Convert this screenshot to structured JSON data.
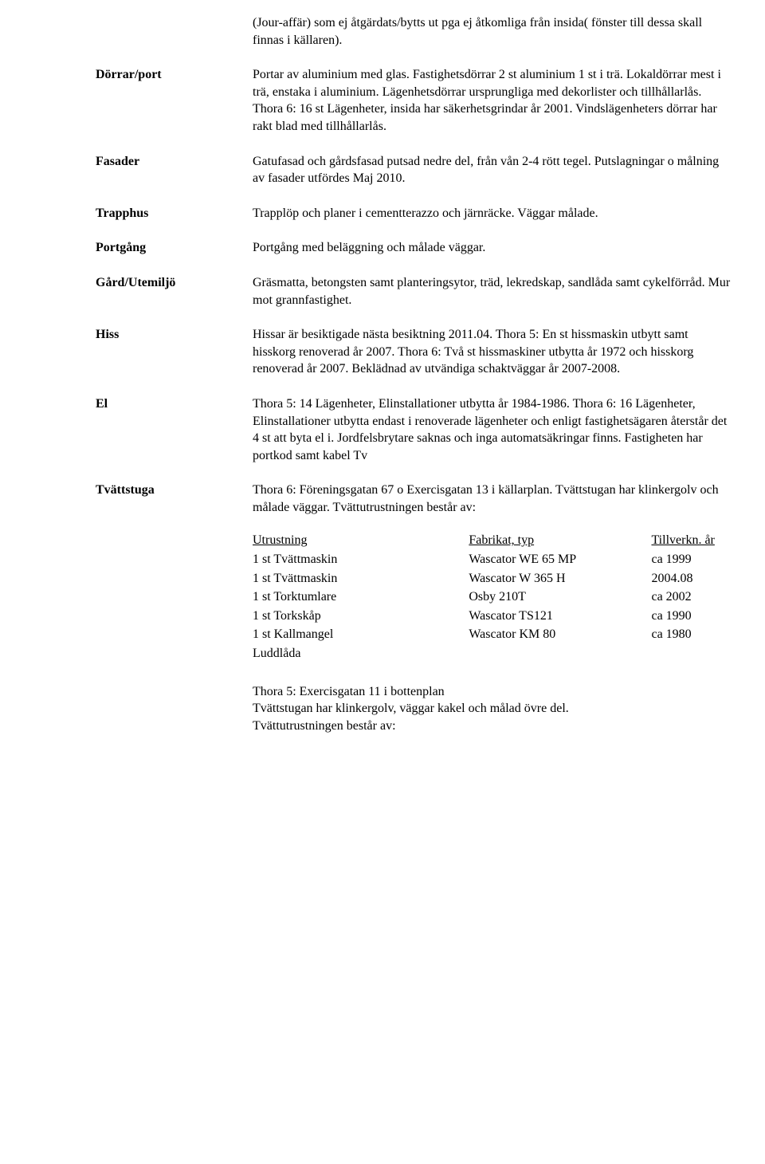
{
  "intro": "(Jour-affär) som ej åtgärdats/bytts ut pga ej åtkomliga från insida( fönster till dessa skall finnas i källaren).",
  "sections": {
    "dorrar": {
      "label": "Dörrar/port",
      "text": "Portar av aluminium med glas. Fastighetsdörrar 2 st aluminium 1 st i trä. Lokaldörrar mest i trä, enstaka i aluminium. Lägenhetsdörrar ursprungliga med dekorlister och tillhållarlås. Thora 6: 16 st Lägenheter, insida har säkerhetsgrindar år 2001. Vindslägenheters dörrar har rakt blad med tillhållarlås."
    },
    "fasader": {
      "label": "Fasader",
      "text": "Gatufasad och gårdsfasad putsad nedre del, från vån 2-4 rött tegel. Putslagningar o målning av fasader utfördes Maj 2010."
    },
    "trapphus": {
      "label": "Trapphus",
      "text": "Trapplöp och planer i cementterazzo och järnräcke. Väggar målade."
    },
    "portgang": {
      "label": "Portgång",
      "text": "Portgång med beläggning och målade väggar."
    },
    "gard": {
      "label": "Gård/Utemiljö",
      "text": "Gräsmatta, betongsten samt planteringsytor, träd, lekredskap, sandlåda samt cykelförråd. Mur mot grannfastighet."
    },
    "hiss": {
      "label": "Hiss",
      "text": "Hissar är besiktigade nästa besiktning  2011.04. Thora 5: En st hissmaskin utbytt samt hisskorg renoverad år 2007. Thora 6: Två st hissmaskiner utbytta år 1972 och hisskorg renoverad år 2007. Beklädnad av utvändiga schaktväggar år 2007-2008."
    },
    "el": {
      "label": "El",
      "text": "Thora 5: 14 Lägenheter, Elinstallationer utbytta år 1984-1986. Thora 6: 16 Lägenheter, Elinstallationer utbytta endast i renoverade lägenheter och enligt fastighetsägaren återstår det 4 st att byta el i. Jordfelsbrytare saknas och inga automatsäkringar finns. Fastigheten har portkod samt kabel Tv"
    },
    "tvatt": {
      "label": "Tvättstuga",
      "intro": "Thora 6: Föreningsgatan 67 o Exercisgatan 13 i källarplan. Tvättstugan har klinkergolv och målade väggar. Tvättutrustningen består av:"
    }
  },
  "equip_table": {
    "headers": {
      "c1": "Utrustning",
      "c2": "Fabrikat, typ",
      "c3": "Tillverkn. år"
    },
    "rows": [
      {
        "c1": "1 st Tvättmaskin",
        "c2": "Wascator WE 65 MP",
        "c3": "ca 1999"
      },
      {
        "c1": "1 st Tvättmaskin",
        "c2": "Wascator W 365 H",
        "c3": "2004.08"
      },
      {
        "c1": "1 st Torktumlare",
        "c2": "Osby 210T",
        "c3": "ca 2002"
      },
      {
        "c1": "1 st Torkskåp",
        "c2": "Wascator TS121",
        "c3": "ca 1990"
      },
      {
        "c1": "1 st Kallmangel",
        "c2": "Wascator KM 80",
        "c3": "ca 1980"
      },
      {
        "c1": "Luddlåda",
        "c2": "",
        "c3": ""
      }
    ]
  },
  "after": {
    "p1": "Thora 5: Exercisgatan 11 i bottenplan",
    "p2": "Tvättstugan har klinkergolv, väggar kakel och målad övre del.",
    "p3": "Tvättutrustningen består av:"
  }
}
